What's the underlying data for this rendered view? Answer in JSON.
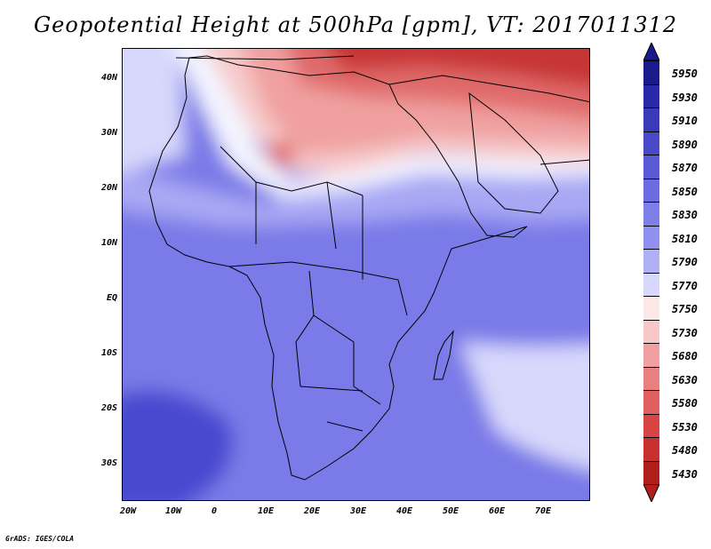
{
  "title": "Geopotential Height at 500hPa [gpm], VT: 2017011312",
  "credit": "GrADS: IGES/COLA",
  "lat_labels": [
    "40N",
    "30N",
    "20N",
    "10N",
    "EQ",
    "10S",
    "20S",
    "30S"
  ],
  "lon_labels": [
    "20W",
    "10W",
    "0",
    "10E",
    "20E",
    "30E",
    "40E",
    "50E",
    "60E",
    "70E"
  ],
  "colorbar": {
    "levels": [
      "5950",
      "5930",
      "5910",
      "5890",
      "5870",
      "5850",
      "5830",
      "5810",
      "5790",
      "5770",
      "5750",
      "5730",
      "5680",
      "5630",
      "5580",
      "5530",
      "5480",
      "5430"
    ],
    "colors": [
      "#1a1a8c",
      "#2828a8",
      "#3a3ab8",
      "#4848c8",
      "#5a5ad6",
      "#6c6ce0",
      "#7e7ee8",
      "#9090f0",
      "#b0b0f6",
      "#d8d8fc",
      "#fde8e8",
      "#f8c8c8",
      "#f0a0a0",
      "#e88080",
      "#e06060",
      "#d84444",
      "#c83030",
      "#b01e1e"
    ]
  },
  "map_colors": {
    "deep_blue": "#4a4ad0",
    "mid_blue": "#7a7ae8",
    "light_blue": "#a8a8f4",
    "pale_blue": "#d8d8fc",
    "white": "#f4f4ff",
    "pale_red": "#f6caca",
    "light_red": "#f0a0a0",
    "mid_red": "#e06a6a",
    "dark_red": "#c83434",
    "coast": "#000000"
  }
}
